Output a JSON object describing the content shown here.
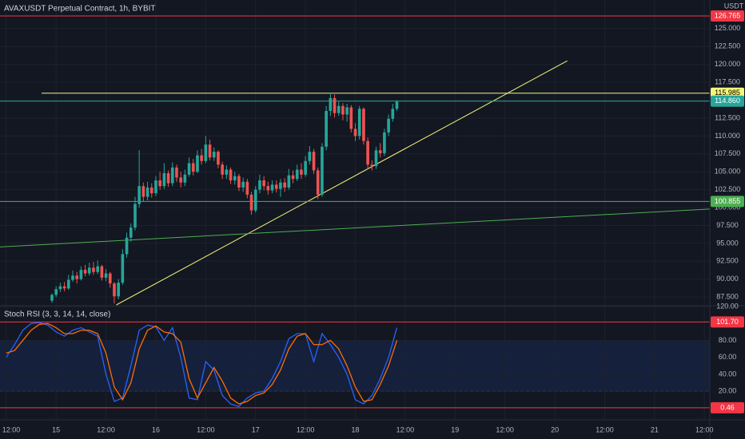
{
  "header": {
    "title": "AVAXUSDT Perpetual Contract, 1h, BYBIT",
    "currency": "USDT"
  },
  "chart_data": [
    {
      "type": "candlestick",
      "up_color": "#26a69a",
      "down_color": "#ef5350",
      "x": [
        23,
        24,
        25,
        26,
        27,
        28,
        29,
        30,
        31,
        32,
        33,
        34,
        35,
        36,
        37,
        38,
        39,
        40,
        41,
        42,
        43,
        44,
        45,
        46,
        47,
        48,
        49,
        50,
        51,
        52,
        53,
        54,
        55,
        56,
        57,
        58,
        59,
        60,
        61,
        62,
        63,
        64,
        65,
        66,
        67,
        68,
        69,
        70,
        71,
        72,
        73,
        74,
        75,
        76,
        77,
        78,
        79,
        80,
        81,
        82,
        83,
        84,
        85,
        86,
        87,
        88,
        89,
        90,
        91,
        92,
        93,
        94,
        95,
        96,
        97,
        98,
        99,
        100,
        101,
        102,
        103,
        104,
        105,
        106
      ],
      "ohlc": [
        [
          87.0,
          88.0,
          86.7,
          87.8
        ],
        [
          87.8,
          89.0,
          87.5,
          88.6
        ],
        [
          88.6,
          89.5,
          88.2,
          89.0
        ],
        [
          89.0,
          89.6,
          88.3,
          88.7
        ],
        [
          88.7,
          90.6,
          88.5,
          89.9
        ],
        [
          89.9,
          91.2,
          89.6,
          90.5
        ],
        [
          90.5,
          91.0,
          89.4,
          90.0
        ],
        [
          90.0,
          91.8,
          89.8,
          91.3
        ],
        [
          91.3,
          92.0,
          90.4,
          90.8
        ],
        [
          90.8,
          92.3,
          90.5,
          91.6
        ],
        [
          91.6,
          92.4,
          90.6,
          91.0
        ],
        [
          91.0,
          92.6,
          90.7,
          91.8
        ],
        [
          91.8,
          92.0,
          89.8,
          90.2
        ],
        [
          90.2,
          91.4,
          89.7,
          90.8
        ],
        [
          90.8,
          91.0,
          88.8,
          89.4
        ],
        [
          89.4,
          89.6,
          86.6,
          87.6
        ],
        [
          87.6,
          90.0,
          87.2,
          89.5
        ],
        [
          89.5,
          94.2,
          89.2,
          93.5
        ],
        [
          93.5,
          96.5,
          93.0,
          95.8
        ],
        [
          95.8,
          97.8,
          95.2,
          97.2
        ],
        [
          97.2,
          101.5,
          96.8,
          100.5
        ],
        [
          100.5,
          108.0,
          100.0,
          103.0
        ],
        [
          103.0,
          103.5,
          100.8,
          101.5
        ],
        [
          101.5,
          103.6,
          101.0,
          102.8
        ],
        [
          102.8,
          103.4,
          101.4,
          102.0
        ],
        [
          102.0,
          104.4,
          101.6,
          103.8
        ],
        [
          103.8,
          105.0,
          102.5,
          103.0
        ],
        [
          103.0,
          106.2,
          102.6,
          104.8
        ],
        [
          104.8,
          105.2,
          102.9,
          103.4
        ],
        [
          103.4,
          106.3,
          103.0,
          105.6
        ],
        [
          105.6,
          106.0,
          103.6,
          104.2
        ],
        [
          104.2,
          105.0,
          102.8,
          103.5
        ],
        [
          103.5,
          105.3,
          103.0,
          104.6
        ],
        [
          104.6,
          107.0,
          104.3,
          106.2
        ],
        [
          106.2,
          106.8,
          104.5,
          105.0
        ],
        [
          105.0,
          108.0,
          104.8,
          107.3
        ],
        [
          107.3,
          108.2,
          106.0,
          106.5
        ],
        [
          106.5,
          110.0,
          106.2,
          108.8
        ],
        [
          108.8,
          109.5,
          106.6,
          107.0
        ],
        [
          107.0,
          108.4,
          106.5,
          107.8
        ],
        [
          107.8,
          108.0,
          105.5,
          106.0
        ],
        [
          106.0,
          106.4,
          104.0,
          104.6
        ],
        [
          104.6,
          105.9,
          104.0,
          105.3
        ],
        [
          105.3,
          105.6,
          103.3,
          103.8
        ],
        [
          103.8,
          105.0,
          103.2,
          104.4
        ],
        [
          104.4,
          104.7,
          102.3,
          102.8
        ],
        [
          102.8,
          104.2,
          102.2,
          103.6
        ],
        [
          103.6,
          104.0,
          101.3,
          101.8
        ],
        [
          101.8,
          102.2,
          99.0,
          99.6
        ],
        [
          99.6,
          103.0,
          99.3,
          102.5
        ],
        [
          102.5,
          104.6,
          102.0,
          103.8
        ],
        [
          103.8,
          104.4,
          102.4,
          103.0
        ],
        [
          103.0,
          103.6,
          101.8,
          102.4
        ],
        [
          102.4,
          103.8,
          102.0,
          103.2
        ],
        [
          103.2,
          103.8,
          102.1,
          102.6
        ],
        [
          102.6,
          104.0,
          101.5,
          103.5
        ],
        [
          103.5,
          104.1,
          102.2,
          102.8
        ],
        [
          102.8,
          105.4,
          102.5,
          104.5
        ],
        [
          104.5,
          105.2,
          103.4,
          104.0
        ],
        [
          104.0,
          106.0,
          103.7,
          105.3
        ],
        [
          105.3,
          106.2,
          104.0,
          104.6
        ],
        [
          104.6,
          107.2,
          104.3,
          106.5
        ],
        [
          106.5,
          108.6,
          106.0,
          107.8
        ],
        [
          107.8,
          108.2,
          104.7,
          105.2
        ],
        [
          105.2,
          105.6,
          101.2,
          101.8
        ],
        [
          101.8,
          109.0,
          101.5,
          108.5
        ],
        [
          108.5,
          114.2,
          108.0,
          113.5
        ],
        [
          113.5,
          116.0,
          112.8,
          115.3
        ],
        [
          115.3,
          115.8,
          112.6,
          113.2
        ],
        [
          113.2,
          114.8,
          112.8,
          114.2
        ],
        [
          114.2,
          114.6,
          112.2,
          113.0
        ],
        [
          113.0,
          114.5,
          112.0,
          114.0
        ],
        [
          114.0,
          114.3,
          110.5,
          111.0
        ],
        [
          111.0,
          111.8,
          109.3,
          110.0
        ],
        [
          110.0,
          114.2,
          109.5,
          113.8
        ],
        [
          113.8,
          114.0,
          108.8,
          109.3
        ],
        [
          109.3,
          109.8,
          105.4,
          106.0
        ],
        [
          106.0,
          106.6,
          105.2,
          105.8
        ],
        [
          105.8,
          108.5,
          105.4,
          108.0
        ],
        [
          108.0,
          109.0,
          107.0,
          107.6
        ],
        [
          107.6,
          111.0,
          107.2,
          110.5
        ],
        [
          110.5,
          113.0,
          110.0,
          112.4
        ],
        [
          112.4,
          114.5,
          112.0,
          113.8
        ],
        [
          113.8,
          115.0,
          113.5,
          114.8
        ]
      ],
      "xlim": [
        10.5,
        181.3
      ],
      "ylim": [
        86.4,
        129.0
      ],
      "yticks": [
        {
          "value": 87.5,
          "label": "87.500"
        },
        {
          "value": 90,
          "label": "90.000"
        },
        {
          "value": 92.5,
          "label": "92.500"
        },
        {
          "value": 95,
          "label": "95.000"
        },
        {
          "value": 97.5,
          "label": "97.500"
        },
        {
          "value": 100,
          "label": "100.000"
        },
        {
          "value": 102.5,
          "label": "102.500"
        },
        {
          "value": 105,
          "label": "105.000"
        },
        {
          "value": 107.5,
          "label": "107.500"
        },
        {
          "value": 110,
          "label": "110.000"
        },
        {
          "value": 112.5,
          "label": "112.500"
        },
        {
          "value": 115,
          "label": "115.000"
        },
        {
          "value": 117.5,
          "label": "117.500"
        },
        {
          "value": 120,
          "label": "120.000"
        },
        {
          "value": 122.5,
          "label": "122.500"
        },
        {
          "value": 125,
          "label": "125.000"
        }
      ],
      "grid": true,
      "price_lines": [
        {
          "value": 126.765,
          "color": "#f23645",
          "text_color": "#ffffff"
        },
        {
          "value": 115.985,
          "from": 20.5,
          "color": "#f5f57a",
          "text_color": "#000000"
        },
        {
          "value": 114.86,
          "label": "114.860",
          "color": "#26a69a",
          "text_color": "#ffffff"
        },
        {
          "value": 100.855,
          "color": "#4caf50",
          "text_color": "#ffffff"
        }
      ],
      "trend_lines": [
        {
          "points": [
            [
              38.5,
              86.4
            ],
            [
              147,
              120.5
            ]
          ],
          "color": "#f5f57a"
        },
        {
          "points": [
            [
              10.5,
              94.5
            ],
            [
              181.3,
              99.8
            ]
          ],
          "color": "#4caf50"
        }
      ]
    },
    {
      "type": "line",
      "title": "Stoch RSI (3, 3, 14, 14, close)",
      "x": [
        12,
        14,
        16,
        18,
        20,
        22,
        24,
        26,
        28,
        30,
        32,
        34,
        36,
        38,
        40,
        42,
        44,
        46,
        48,
        50,
        52,
        54,
        56,
        58,
        60,
        62,
        64,
        66,
        68,
        70,
        72,
        74,
        76,
        78,
        80,
        82,
        84,
        86,
        88,
        90,
        92,
        94,
        96,
        98,
        100,
        102,
        104,
        106
      ],
      "series": [
        {
          "color": "#2962ff",
          "values": [
            60,
            75,
            92,
            100,
            101,
            98,
            90,
            85,
            92,
            95,
            90,
            85,
            40,
            8,
            12,
            50,
            92,
            98,
            96,
            80,
            95,
            60,
            12,
            10,
            55,
            45,
            15,
            5,
            2,
            12,
            18,
            20,
            35,
            55,
            82,
            88,
            88,
            55,
            88,
            75,
            60,
            40,
            10,
            5,
            15,
            35,
            60,
            95
          ]
        },
        {
          "color": "#ff6d00",
          "values": [
            65,
            68,
            80,
            92,
            99,
            100,
            95,
            88,
            88,
            92,
            92,
            88,
            65,
            25,
            10,
            30,
            70,
            92,
            97,
            90,
            88,
            78,
            35,
            12,
            30,
            48,
            32,
            12,
            5,
            8,
            15,
            18,
            28,
            45,
            70,
            85,
            88,
            75,
            75,
            80,
            70,
            50,
            25,
            8,
            10,
            28,
            50,
            80
          ]
        }
      ],
      "xlim": [
        10.5,
        181.3
      ],
      "ylim": [
        -12.8,
        120
      ],
      "yticks": [
        {
          "value": 20,
          "label": "20.00"
        },
        {
          "value": 40,
          "label": "40.00"
        },
        {
          "value": 60,
          "label": "60.00"
        },
        {
          "value": 80,
          "label": "80.00"
        },
        {
          "value": 120,
          "label": "120.00"
        }
      ],
      "band": [
        20,
        80
      ],
      "band_color": "rgba(41,98,255,0.12)",
      "price_lines": [
        {
          "value": 101.7,
          "label": "101.70",
          "color": "#f23645",
          "text_color": "#ffffff"
        },
        {
          "value": 0.46,
          "color": "#f23645",
          "text_color": "#ffffff"
        }
      ],
      "xticks": [
        {
          "value": 12,
          "label": "12:00"
        },
        {
          "value": 24,
          "label": "15"
        },
        {
          "value": 36,
          "label": "12:00"
        },
        {
          "value": 48,
          "label": "16"
        },
        {
          "value": 60,
          "label": "12:00"
        },
        {
          "value": 72,
          "label": "17"
        },
        {
          "value": 84,
          "label": "12:00"
        },
        {
          "value": 96,
          "label": "18"
        },
        {
          "value": 108,
          "label": "12:00"
        },
        {
          "value": 120,
          "label": "19"
        },
        {
          "value": 132,
          "label": "12:00"
        },
        {
          "value": 144,
          "label": "20"
        },
        {
          "value": 156,
          "label": "12:00"
        },
        {
          "value": 168,
          "label": "21"
        },
        {
          "value": 180,
          "label": "12:00"
        }
      ],
      "grid": true
    }
  ]
}
